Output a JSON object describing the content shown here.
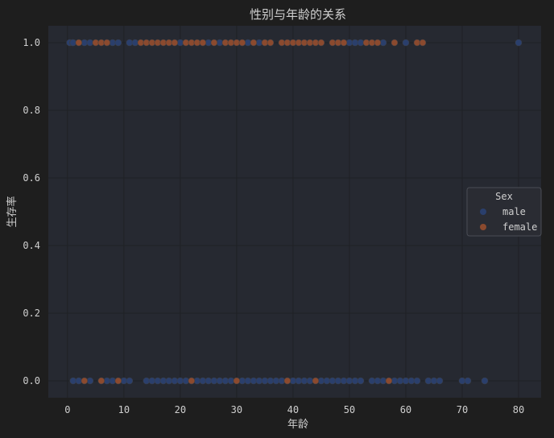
{
  "chart_data": {
    "type": "scatter",
    "title": "性别与年龄的关系",
    "xlabel": "年龄",
    "ylabel": "生存率",
    "xlim": [
      -3.4,
      84
    ],
    "ylim": [
      -0.05,
      1.05
    ],
    "xticks": [
      0,
      10,
      20,
      30,
      40,
      50,
      60,
      70,
      80
    ],
    "yticks": [
      0.0,
      0.2,
      0.4,
      0.6,
      0.8,
      1.0
    ],
    "grid": true,
    "legend": {
      "title": "Sex",
      "position": "center-right"
    },
    "colors": {
      "background": "#1e1e1e",
      "plot_area": "#262931",
      "grid": "#1f2125",
      "text": "#cfcfcf",
      "male": "#2a3f6c",
      "female": "#8b4a2e"
    },
    "series": [
      {
        "name": "male",
        "points": [
          {
            "x": 0.4,
            "y": 1
          },
          {
            "x": 0.9,
            "y": 1
          },
          {
            "x": 1,
            "y": 1
          },
          {
            "x": 3,
            "y": 1
          },
          {
            "x": 4,
            "y": 1
          },
          {
            "x": 7,
            "y": 1
          },
          {
            "x": 8,
            "y": 1
          },
          {
            "x": 9,
            "y": 1
          },
          {
            "x": 11,
            "y": 1
          },
          {
            "x": 12,
            "y": 1
          },
          {
            "x": 20,
            "y": 1
          },
          {
            "x": 25,
            "y": 1
          },
          {
            "x": 27,
            "y": 1
          },
          {
            "x": 31,
            "y": 1
          },
          {
            "x": 32,
            "y": 1
          },
          {
            "x": 34,
            "y": 1
          },
          {
            "x": 35,
            "y": 1
          },
          {
            "x": 36,
            "y": 1
          },
          {
            "x": 48,
            "y": 1
          },
          {
            "x": 50,
            "y": 1
          },
          {
            "x": 51,
            "y": 1
          },
          {
            "x": 52,
            "y": 1
          },
          {
            "x": 56,
            "y": 1
          },
          {
            "x": 60,
            "y": 1
          },
          {
            "x": 80,
            "y": 1
          },
          {
            "x": 1,
            "y": 0
          },
          {
            "x": 2,
            "y": 0
          },
          {
            "x": 4,
            "y": 0
          },
          {
            "x": 7,
            "y": 0
          },
          {
            "x": 8,
            "y": 0
          },
          {
            "x": 10,
            "y": 0
          },
          {
            "x": 11,
            "y": 0
          },
          {
            "x": 14,
            "y": 0
          },
          {
            "x": 15,
            "y": 0
          },
          {
            "x": 16,
            "y": 0
          },
          {
            "x": 17,
            "y": 0
          },
          {
            "x": 18,
            "y": 0
          },
          {
            "x": 19,
            "y": 0
          },
          {
            "x": 20,
            "y": 0
          },
          {
            "x": 21,
            "y": 0
          },
          {
            "x": 22,
            "y": 0
          },
          {
            "x": 23,
            "y": 0
          },
          {
            "x": 24,
            "y": 0
          },
          {
            "x": 25,
            "y": 0
          },
          {
            "x": 26,
            "y": 0
          },
          {
            "x": 27,
            "y": 0
          },
          {
            "x": 28,
            "y": 0
          },
          {
            "x": 29,
            "y": 0
          },
          {
            "x": 31,
            "y": 0
          },
          {
            "x": 32,
            "y": 0
          },
          {
            "x": 33,
            "y": 0
          },
          {
            "x": 34,
            "y": 0
          },
          {
            "x": 35,
            "y": 0
          },
          {
            "x": 36,
            "y": 0
          },
          {
            "x": 37,
            "y": 0
          },
          {
            "x": 38,
            "y": 0
          },
          {
            "x": 39,
            "y": 0
          },
          {
            "x": 40,
            "y": 0
          },
          {
            "x": 41,
            "y": 0
          },
          {
            "x": 42,
            "y": 0
          },
          {
            "x": 43,
            "y": 0
          },
          {
            "x": 45,
            "y": 0
          },
          {
            "x": 46,
            "y": 0
          },
          {
            "x": 47,
            "y": 0
          },
          {
            "x": 48,
            "y": 0
          },
          {
            "x": 49,
            "y": 0
          },
          {
            "x": 50,
            "y": 0
          },
          {
            "x": 51,
            "y": 0
          },
          {
            "x": 52,
            "y": 0
          },
          {
            "x": 54,
            "y": 0
          },
          {
            "x": 55,
            "y": 0
          },
          {
            "x": 56,
            "y": 0
          },
          {
            "x": 58,
            "y": 0
          },
          {
            "x": 59,
            "y": 0
          },
          {
            "x": 60,
            "y": 0
          },
          {
            "x": 61,
            "y": 0
          },
          {
            "x": 62,
            "y": 0
          },
          {
            "x": 64,
            "y": 0
          },
          {
            "x": 65,
            "y": 0
          },
          {
            "x": 66,
            "y": 0
          },
          {
            "x": 70,
            "y": 0
          },
          {
            "x": 71,
            "y": 0
          },
          {
            "x": 74,
            "y": 0
          }
        ]
      },
      {
        "name": "female",
        "points": [
          {
            "x": 2,
            "y": 1
          },
          {
            "x": 5,
            "y": 1
          },
          {
            "x": 6,
            "y": 1
          },
          {
            "x": 7,
            "y": 1
          },
          {
            "x": 13,
            "y": 1
          },
          {
            "x": 14,
            "y": 1
          },
          {
            "x": 15,
            "y": 1
          },
          {
            "x": 16,
            "y": 1
          },
          {
            "x": 17,
            "y": 1
          },
          {
            "x": 18,
            "y": 1
          },
          {
            "x": 19,
            "y": 1
          },
          {
            "x": 21,
            "y": 1
          },
          {
            "x": 22,
            "y": 1
          },
          {
            "x": 23,
            "y": 1
          },
          {
            "x": 24,
            "y": 1
          },
          {
            "x": 26,
            "y": 1
          },
          {
            "x": 28,
            "y": 1
          },
          {
            "x": 29,
            "y": 1
          },
          {
            "x": 30,
            "y": 1
          },
          {
            "x": 31,
            "y": 1
          },
          {
            "x": 33,
            "y": 1
          },
          {
            "x": 35,
            "y": 1
          },
          {
            "x": 36,
            "y": 1
          },
          {
            "x": 38,
            "y": 1
          },
          {
            "x": 39,
            "y": 1
          },
          {
            "x": 40,
            "y": 1
          },
          {
            "x": 41,
            "y": 1
          },
          {
            "x": 42,
            "y": 1
          },
          {
            "x": 43,
            "y": 1
          },
          {
            "x": 44,
            "y": 1
          },
          {
            "x": 45,
            "y": 1
          },
          {
            "x": 47,
            "y": 1
          },
          {
            "x": 48,
            "y": 1
          },
          {
            "x": 49,
            "y": 1
          },
          {
            "x": 53,
            "y": 1
          },
          {
            "x": 54,
            "y": 1
          },
          {
            "x": 55,
            "y": 1
          },
          {
            "x": 58,
            "y": 1
          },
          {
            "x": 62,
            "y": 1
          },
          {
            "x": 63,
            "y": 1
          },
          {
            "x": 3,
            "y": 0
          },
          {
            "x": 6,
            "y": 0
          },
          {
            "x": 9,
            "y": 0
          },
          {
            "x": 22,
            "y": 0
          },
          {
            "x": 30,
            "y": 0
          },
          {
            "x": 39,
            "y": 0
          },
          {
            "x": 44,
            "y": 0
          },
          {
            "x": 57,
            "y": 0
          }
        ]
      }
    ]
  }
}
